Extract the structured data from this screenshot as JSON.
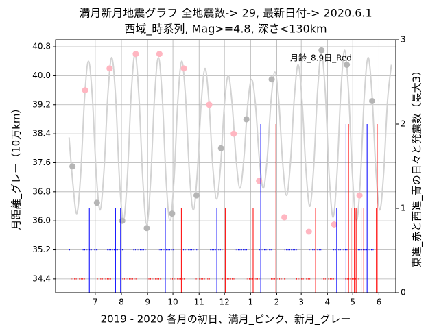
{
  "chart_data": {
    "type": "line",
    "title": "満月新月地震グラフ  全地震数-> 29,  最新日付-> 2020.6.1",
    "subtitle": "西域_時系列,  Mag>=4.8,  深さ<130km",
    "xlabel": "2019 - 2020 各月の初日、満月_ピンク、新月_グレー",
    "ylabel": "月距離_グレー（10万km）",
    "y2label": "東進_赤と西進_青の日々と発震数（最大3）",
    "annotation": "月齢_8.9日_Red",
    "grid": true,
    "xlim": [
      -47,
      356
    ],
    "ylim": [
      34.02,
      40.99
    ],
    "y2lim": [
      0,
      3
    ],
    "xticks": [
      {
        "value": 0,
        "label": "7"
      },
      {
        "value": 31,
        "label": "8"
      },
      {
        "value": 62,
        "label": "9"
      },
      {
        "value": 92,
        "label": "10"
      },
      {
        "value": 123,
        "label": "11"
      },
      {
        "value": 153,
        "label": "12"
      },
      {
        "value": 184,
        "label": "1"
      },
      {
        "value": 215,
        "label": "2"
      },
      {
        "value": 244,
        "label": "3"
      },
      {
        "value": 275,
        "label": "4"
      },
      {
        "value": 305,
        "label": "5"
      },
      {
        "value": 336,
        "label": "6"
      }
    ],
    "yticks": [
      34.4,
      35.2,
      {
        "value": 36,
        "label": "36.0"
      },
      36.8,
      37.6,
      38.4,
      39.2,
      {
        "value": 40,
        "label": "40.0"
      },
      40.8
    ],
    "y2ticks": [
      0,
      1,
      2,
      3
    ],
    "series": [
      {
        "type": "line",
        "color": "#d3d3d3",
        "x": [
          -31,
          -26.4,
          -21.8,
          -17.2,
          -12.6,
          -8,
          -3.4,
          1.2,
          5.8,
          10.4,
          15,
          19.6,
          24.2,
          28.8,
          33.4,
          38,
          42.6,
          47.2,
          51.8,
          56.4,
          61,
          65.6,
          70.2,
          74.8,
          79.4,
          84,
          88.6,
          93.2,
          97.8,
          102.4,
          107,
          111.6,
          116.2,
          120.8,
          125.4,
          130,
          134.6,
          139.2,
          143.8,
          148.4,
          153,
          157.6,
          162.2,
          166.8,
          171.4,
          176,
          180.6,
          185.2,
          189.8,
          194.4,
          199,
          203.6,
          208.2,
          212.8,
          217.4,
          222,
          226.6,
          231.2,
          235.8,
          240.4,
          245,
          249.6,
          254.2,
          258.8,
          263.4,
          268,
          272.6,
          277.2,
          281.8,
          286.4,
          291,
          295.6,
          300.2,
          304.8,
          309.4,
          314,
          318.6,
          323.2,
          327.8,
          332.4,
          337,
          341.6,
          346.2,
          350.8
        ],
        "values": [
          38.3,
          37.0,
          36.2,
          37.3,
          39.4,
          40.4,
          39.4,
          37.3,
          36.3,
          37.4,
          39.5,
          40.5,
          39.4,
          37.1,
          36.0,
          37.2,
          39.5,
          40.6,
          39.4,
          37.1,
          35.9,
          37.1,
          39.4,
          40.5,
          39.4,
          37.1,
          36.0,
          37.1,
          39.3,
          40.4,
          39.4,
          37.3,
          36.3,
          37.3,
          39.2,
          40.2,
          39.3,
          37.5,
          36.6,
          37.5,
          39.2,
          40.0,
          39.2,
          37.7,
          36.9,
          37.7,
          39.2,
          39.9,
          39.2,
          37.7,
          36.9,
          37.7,
          39.3,
          40.1,
          39.3,
          37.6,
          36.7,
          37.6,
          39.4,
          40.3,
          39.3,
          37.4,
          36.4,
          37.5,
          39.6,
          40.6,
          39.5,
          37.2,
          36.1,
          37.3,
          39.6,
          40.7,
          39.5,
          37.2,
          36.0,
          37.1,
          39.4,
          40.5,
          39.5,
          37.4,
          36.3,
          37.3,
          39.3,
          40.3
        ]
      },
      {
        "type": "scatter",
        "color": "#ffb6c1",
        "x": [
          -12,
          17,
          48,
          76,
          105,
          135,
          164,
          194,
          224,
          253,
          283,
          313
        ],
        "values": [
          39.6,
          40.2,
          40.6,
          40.6,
          40.2,
          39.2,
          38.4,
          37.1,
          36.1,
          35.7,
          35.9,
          36.7
        ]
      },
      {
        "type": "scatter",
        "color": "#b5b5b5",
        "x": [
          -27,
          2,
          32,
          61,
          91,
          120,
          149,
          179,
          209,
          268,
          298,
          328
        ],
        "values": [
          37.5,
          36.5,
          36.0,
          35.8,
          36.2,
          36.7,
          38.0,
          38.8,
          39.9,
          40.7,
          40.3,
          39.3
        ]
      },
      {
        "type": "range",
        "color": "#ff0000",
        "level": 34.4,
        "x": [
          [
            -28,
            -11
          ],
          [
            3,
            19
          ],
          [
            33,
            48
          ],
          [
            62,
            78
          ],
          [
            90,
            105
          ],
          [
            120,
            135
          ],
          [
            151,
            165
          ],
          [
            179,
            194
          ],
          [
            209,
            225
          ],
          [
            239,
            254
          ],
          [
            269,
            282
          ],
          [
            295,
            312
          ]
        ]
      },
      {
        "type": "range",
        "color": "#0000ff",
        "level": 35.2,
        "x": [
          [
            -30,
            -30
          ],
          [
            -14,
            2
          ],
          [
            15,
            32
          ],
          [
            46,
            60
          ],
          [
            75,
            92
          ],
          [
            105,
            120
          ],
          [
            135,
            150
          ],
          [
            166,
            179
          ],
          [
            195,
            209
          ],
          [
            225,
            239
          ],
          [
            254,
            268
          ],
          [
            283,
            299
          ],
          [
            312,
            329
          ]
        ]
      },
      {
        "type": "bar",
        "axis": "y2",
        "color": "#0000ff",
        "x": [
          -7,
          24,
          30,
          83,
          144,
          196,
          286,
          297,
          322
        ],
        "values": [
          1,
          1,
          1,
          1,
          1,
          2,
          1,
          2,
          2
        ]
      },
      {
        "type": "bar",
        "axis": "y2",
        "color": "#ff0000",
        "x": [
          102,
          154,
          187,
          214,
          261,
          300,
          303,
          307,
          309,
          315,
          318,
          333,
          334
        ],
        "values": [
          1,
          1,
          1,
          2,
          1,
          2,
          1,
          1,
          1,
          1,
          1,
          1,
          2
        ]
      }
    ]
  }
}
